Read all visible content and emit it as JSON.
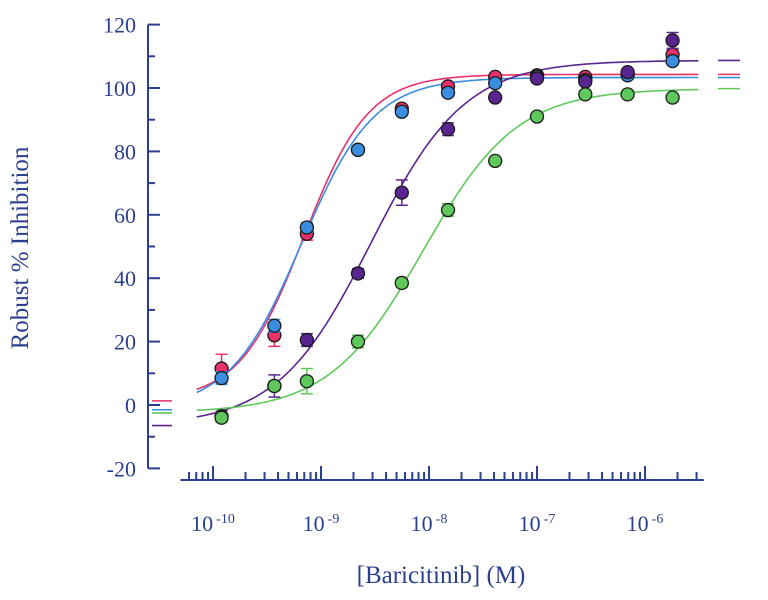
{
  "chart_data": {
    "type": "scatter",
    "xlabel": "[Baricitinib] (M)",
    "ylabel": "Robust % Inhibition",
    "x_scale": "log",
    "xlim": [
      5e-11,
      3.5e-06
    ],
    "ylim": [
      -20,
      120
    ],
    "y_ticks": [
      -20,
      0,
      20,
      40,
      60,
      80,
      100,
      120
    ],
    "x_tick_labels": [
      {
        "base": "10",
        "exp": "-10",
        "value": 1e-10
      },
      {
        "base": "10",
        "exp": "-9",
        "value": 1e-09
      },
      {
        "base": "10",
        "exp": "-8",
        "value": 1e-08
      },
      {
        "base": "10",
        "exp": "-7",
        "value": 1e-07
      },
      {
        "base": "10",
        "exp": "-6",
        "value": 1e-06
      }
    ],
    "grid": false,
    "legend": "none",
    "axis_color": "#2b3f8f",
    "series": [
      {
        "color": "#e8306a",
        "x": [
          1.2e-10,
          3.7e-10,
          7.4e-10,
          2.2e-09,
          5.6e-09,
          1.5e-08,
          4.1e-08,
          1e-07,
          2.8e-07,
          6.9e-07,
          1.8e-06
        ],
        "y": [
          11.5,
          22,
          54,
          80.5,
          93.5,
          100.5,
          103.5,
          104,
          103.5,
          104.5,
          110.5
        ],
        "err": [
          4.5,
          3.5,
          2,
          1,
          1,
          1,
          1,
          1,
          1,
          1,
          1.5
        ],
        "fit": {
          "bottom": 1.3,
          "top": 104.3,
          "ec50": 6.9e-10,
          "hill": 1.45
        }
      },
      {
        "color": "#3b8de0",
        "x": [
          1.2e-10,
          3.7e-10,
          7.4e-10,
          2.2e-09,
          5.6e-09,
          1.5e-08,
          4.1e-08,
          1e-07,
          2.8e-07,
          6.9e-07,
          1.8e-06
        ],
        "y": [
          8.5,
          25,
          56,
          80.5,
          92.5,
          98.5,
          101.5,
          103.5,
          102.5,
          104,
          108.5
        ],
        "err": [
          2,
          2,
          1.5,
          1,
          1,
          1,
          1,
          1,
          1,
          1,
          1
        ],
        "fit": {
          "bottom": -1.5,
          "top": 103.3,
          "ec50": 6.6e-10,
          "hill": 1.3
        }
      },
      {
        "color": "#5a2590",
        "x": [
          1.2e-10,
          3.7e-10,
          7.4e-10,
          2.2e-09,
          5.6e-09,
          1.5e-08,
          4.1e-08,
          1e-07,
          2.8e-07,
          6.9e-07,
          1.8e-06
        ],
        "y": [
          -3.5,
          6,
          20.5,
          41.5,
          67,
          87,
          97,
          103,
          102,
          105,
          115
        ],
        "err": [
          1.5,
          3.5,
          2,
          1.5,
          4,
          2,
          1,
          1,
          1,
          1,
          2.5
        ],
        "fit": {
          "bottom": -6.5,
          "top": 108.7,
          "ec50": 2.9e-09,
          "hill": 1.0
        }
      },
      {
        "color": "#5ec95a",
        "x": [
          1.2e-10,
          3.7e-10,
          7.4e-10,
          2.2e-09,
          5.6e-09,
          1.5e-08,
          4.1e-08,
          1e-07,
          2.8e-07,
          6.9e-07,
          1.8e-06
        ],
        "y": [
          -4,
          6,
          7.5,
          20,
          38.5,
          61.5,
          77,
          91,
          98,
          98,
          97
        ],
        "err": [
          1.5,
          1.5,
          4,
          2,
          1.5,
          2,
          1,
          1,
          1,
          1,
          1
        ],
        "fit": {
          "bottom": -2.5,
          "top": 99.8,
          "ec50": 8.8e-09,
          "hill": 1.0
        }
      }
    ]
  }
}
